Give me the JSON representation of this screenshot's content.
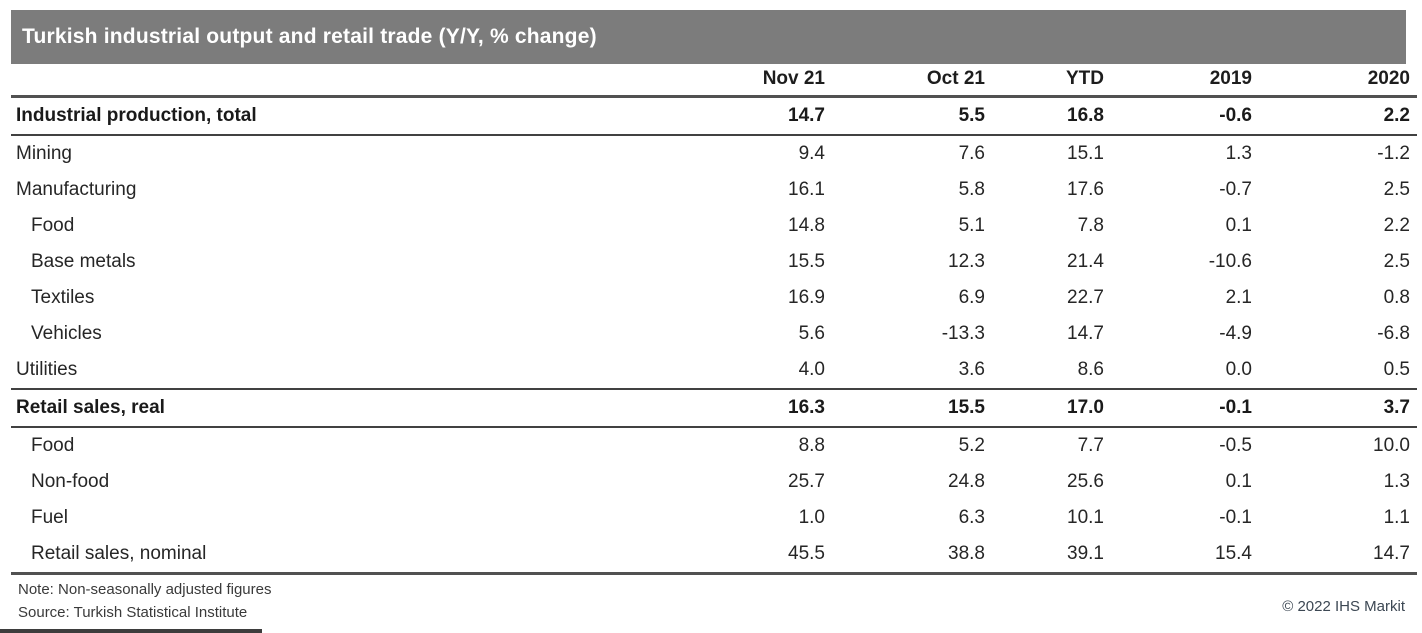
{
  "title": "Turkish industrial output and retail trade (Y/Y, % change)",
  "table": {
    "columns": [
      "",
      "Nov 21",
      "Oct 21",
      "YTD",
      "2019",
      "2020"
    ],
    "rows": [
      {
        "label": "Industrial production, total",
        "bold": true,
        "indent": false,
        "values": [
          "14.7",
          "5.5",
          "16.8",
          "-0.6",
          "2.2"
        ]
      },
      {
        "label": "Mining",
        "bold": false,
        "indent": false,
        "values": [
          "9.4",
          "7.6",
          "15.1",
          "1.3",
          "-1.2"
        ]
      },
      {
        "label": "Manufacturing",
        "bold": false,
        "indent": false,
        "values": [
          "16.1",
          "5.8",
          "17.6",
          "-0.7",
          "2.5"
        ]
      },
      {
        "label": "Food",
        "bold": false,
        "indent": true,
        "values": [
          "14.8",
          "5.1",
          "7.8",
          "0.1",
          "2.2"
        ]
      },
      {
        "label": "Base metals",
        "bold": false,
        "indent": true,
        "values": [
          "15.5",
          "12.3",
          "21.4",
          "-10.6",
          "2.5"
        ]
      },
      {
        "label": "Textiles",
        "bold": false,
        "indent": true,
        "values": [
          "16.9",
          "6.9",
          "22.7",
          "2.1",
          "0.8"
        ]
      },
      {
        "label": "Vehicles",
        "bold": false,
        "indent": true,
        "values": [
          "5.6",
          "-13.3",
          "14.7",
          "-4.9",
          "-6.8"
        ]
      },
      {
        "label": "Utilities",
        "bold": false,
        "indent": false,
        "values": [
          "4.0",
          "3.6",
          "8.6",
          "0.0",
          "0.5"
        ]
      },
      {
        "label": "Retail sales, real",
        "bold": true,
        "indent": false,
        "values": [
          "16.3",
          "15.5",
          "17.0",
          "-0.1",
          "3.7"
        ]
      },
      {
        "label": "Food",
        "bold": false,
        "indent": true,
        "values": [
          "8.8",
          "5.2",
          "7.7",
          "-0.5",
          "10.0"
        ]
      },
      {
        "label": "Non-food",
        "bold": false,
        "indent": true,
        "values": [
          "25.7",
          "24.8",
          "25.6",
          "0.1",
          "1.3"
        ]
      },
      {
        "label": "Fuel",
        "bold": false,
        "indent": true,
        "values": [
          "1.0",
          "6.3",
          "10.1",
          "-0.1",
          "1.1"
        ]
      },
      {
        "label": "Retail sales, nominal",
        "bold": false,
        "indent": true,
        "values": [
          "45.5",
          "38.8",
          "39.1",
          "15.4",
          "14.7"
        ]
      }
    ]
  },
  "footer": {
    "note": "Note: Non-seasonally adjusted figures",
    "source": "Source: Turkish Statistical Institute",
    "copyright": "© 2022 IHS Markit"
  },
  "colors": {
    "title_bar_background": "#7c7c7c",
    "title_text": "#ffffff",
    "table_text": "#262626",
    "heavy_rule": "#515151",
    "section_rule": "#414141",
    "copyright_text": "#3c4753",
    "accent_bar": "#3d3d3d"
  },
  "chart_data": {
    "type": "table",
    "title": "Turkish industrial output and retail trade (Y/Y, % change)",
    "columns": [
      "Nov 21",
      "Oct 21",
      "YTD",
      "2019",
      "2020"
    ],
    "rows": [
      {
        "label": "Industrial production, total",
        "values": [
          14.7,
          5.5,
          16.8,
          -0.6,
          2.2
        ]
      },
      {
        "label": "Mining",
        "values": [
          9.4,
          7.6,
          15.1,
          1.3,
          -1.2
        ]
      },
      {
        "label": "Manufacturing",
        "values": [
          16.1,
          5.8,
          17.6,
          -0.7,
          2.5
        ]
      },
      {
        "label": "Food (manufacturing)",
        "values": [
          14.8,
          5.1,
          7.8,
          0.1,
          2.2
        ]
      },
      {
        "label": "Base metals",
        "values": [
          15.5,
          12.3,
          21.4,
          -10.6,
          2.5
        ]
      },
      {
        "label": "Textiles",
        "values": [
          16.9,
          6.9,
          22.7,
          2.1,
          0.8
        ]
      },
      {
        "label": "Vehicles",
        "values": [
          5.6,
          -13.3,
          14.7,
          -4.9,
          -6.8
        ]
      },
      {
        "label": "Utilities",
        "values": [
          4.0,
          3.6,
          8.6,
          0.0,
          0.5
        ]
      },
      {
        "label": "Retail sales, real",
        "values": [
          16.3,
          15.5,
          17.0,
          -0.1,
          3.7
        ]
      },
      {
        "label": "Food (retail)",
        "values": [
          8.8,
          5.2,
          7.7,
          -0.5,
          10.0
        ]
      },
      {
        "label": "Non-food",
        "values": [
          25.7,
          24.8,
          25.6,
          0.1,
          1.3
        ]
      },
      {
        "label": "Fuel",
        "values": [
          1.0,
          6.3,
          10.1,
          -0.1,
          1.1
        ]
      },
      {
        "label": "Retail sales, nominal",
        "values": [
          45.5,
          38.8,
          39.1,
          15.4,
          14.7
        ]
      }
    ],
    "note": "Note: Non-seasonally adjusted figures",
    "source": "Source: Turkish Statistical Institute"
  }
}
